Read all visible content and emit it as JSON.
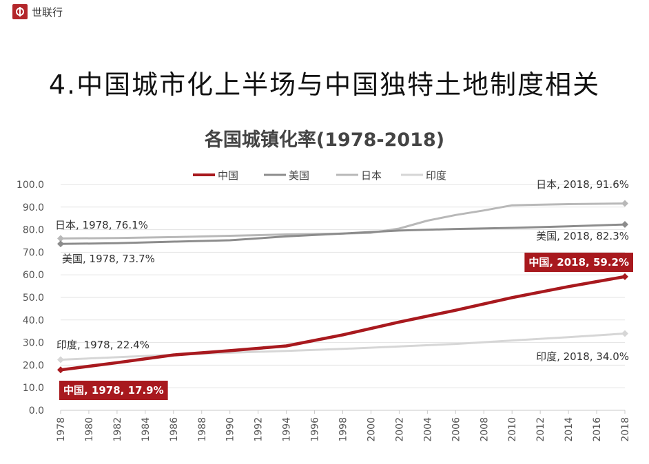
{
  "header": {
    "brand": "世联行"
  },
  "slide_title": "4.中国城市化上半场与中国独特土地制度相关",
  "colors": {
    "china": "#a8191e",
    "usa": "#8c8c8c",
    "japan": "#b8b8b8",
    "india": "#d6d6d6",
    "brand": "#b3262a"
  },
  "chart_data": {
    "type": "line",
    "title": "各国城镇化率(1978-2018)",
    "legend_position": "top",
    "ylim": [
      0,
      100
    ],
    "yticks": [
      "0.0",
      "10.0",
      "20.0",
      "30.0",
      "40.0",
      "50.0",
      "60.0",
      "70.0",
      "80.0",
      "90.0",
      "100.0"
    ],
    "xticks": [
      "1978",
      "1980",
      "1982",
      "1984",
      "1986",
      "1988",
      "1990",
      "1992",
      "1994",
      "1996",
      "1998",
      "2000",
      "2002",
      "2004",
      "2006",
      "2008",
      "2010",
      "2012",
      "2014",
      "2016",
      "2018"
    ],
    "series": [
      {
        "name": "中国",
        "x": [
          1978,
          1982,
          1986,
          1990,
          1994,
          1998,
          2002,
          2006,
          2010,
          2014,
          2018
        ],
        "y": [
          17.9,
          21.1,
          24.5,
          26.4,
          28.5,
          33.4,
          39.1,
          44.3,
          49.9,
          54.8,
          59.2
        ]
      },
      {
        "name": "美国",
        "x": [
          1978,
          1982,
          1986,
          1990,
          1994,
          1998,
          2002,
          2006,
          2010,
          2014,
          2018
        ],
        "y": [
          73.7,
          74.0,
          74.7,
          75.3,
          77.0,
          78.3,
          79.6,
          80.3,
          80.8,
          81.5,
          82.3
        ]
      },
      {
        "name": "日本",
        "x": [
          1978,
          1982,
          1986,
          1990,
          1994,
          1998,
          2000,
          2002,
          2004,
          2006,
          2008,
          2010,
          2014,
          2018
        ],
        "y": [
          76.1,
          76.3,
          76.7,
          77.3,
          77.9,
          78.3,
          78.6,
          80.5,
          84.0,
          86.5,
          88.5,
          90.8,
          91.3,
          91.6
        ]
      },
      {
        "name": "印度",
        "x": [
          1978,
          1982,
          1986,
          1990,
          1994,
          1998,
          2002,
          2006,
          2010,
          2014,
          2018
        ],
        "y": [
          22.4,
          23.5,
          24.6,
          25.5,
          26.3,
          27.2,
          28.3,
          29.4,
          30.9,
          32.4,
          34.0
        ]
      }
    ],
    "annotations": [
      {
        "text": "日本, 1978, 76.1%",
        "series": "日本",
        "point": "start",
        "style": "plain"
      },
      {
        "text": "美国, 1978, 73.7%",
        "series": "美国",
        "point": "start",
        "style": "plain"
      },
      {
        "text": "印度, 1978, 22.4%",
        "series": "印度",
        "point": "start",
        "style": "plain"
      },
      {
        "text": "中国, 1978, 17.9%",
        "series": "中国",
        "point": "start",
        "style": "boxed"
      },
      {
        "text": "日本, 2018, 91.6%",
        "series": "日本",
        "point": "end",
        "style": "plain"
      },
      {
        "text": "美国, 2018, 82.3%",
        "series": "美国",
        "point": "end",
        "style": "plain"
      },
      {
        "text": "中国, 2018, 59.2%",
        "series": "中国",
        "point": "end",
        "style": "boxed"
      },
      {
        "text": "印度, 2018, 34.0%",
        "series": "印度",
        "point": "end",
        "style": "plain"
      }
    ]
  }
}
